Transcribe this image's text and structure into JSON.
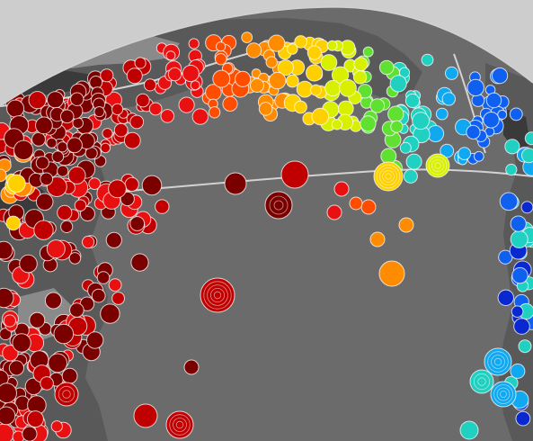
{
  "map": {
    "colors": {
      "background": "#ffffff",
      "sky": "#cdcdcd",
      "ocean": "#6b6b6b",
      "land": "#595959",
      "land_light": "#8a8a8a",
      "land_dark": "#3a3a3a",
      "border_line": "#d2d2d2",
      "marker_outline": "#ffffff"
    },
    "marker_color_scale": [
      "#7a0000",
      "#c00000",
      "#e81010",
      "#ff4d00",
      "#ff8c00",
      "#ffd000",
      "#d8f000",
      "#60e030",
      "#20d0c0",
      "#10a8f0",
      "#1060f0",
      "#0a28d0"
    ],
    "marker_icon": "concentric-circle-marker-icon"
  }
}
